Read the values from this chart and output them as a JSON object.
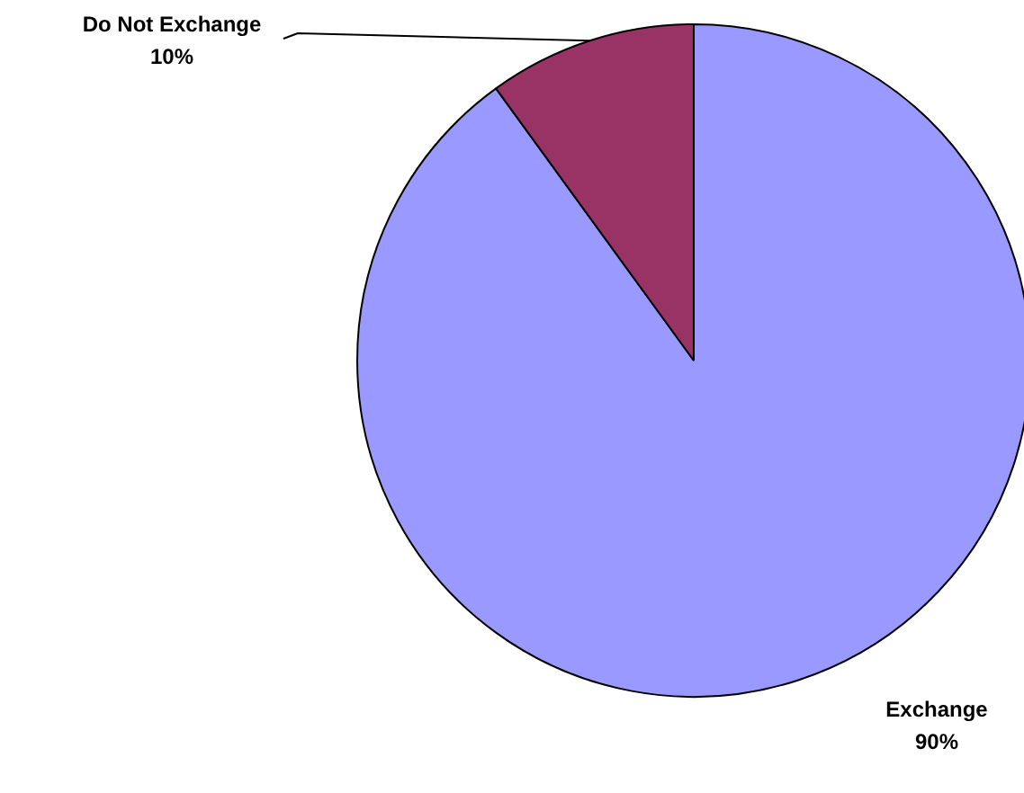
{
  "chart_data": {
    "type": "pie",
    "categories": [
      "Exchange",
      "Do Not Exchange"
    ],
    "values": [
      90,
      10
    ],
    "colors": [
      "#9999ff",
      "#993366"
    ],
    "value_labels": [
      "90%",
      "10%"
    ]
  }
}
